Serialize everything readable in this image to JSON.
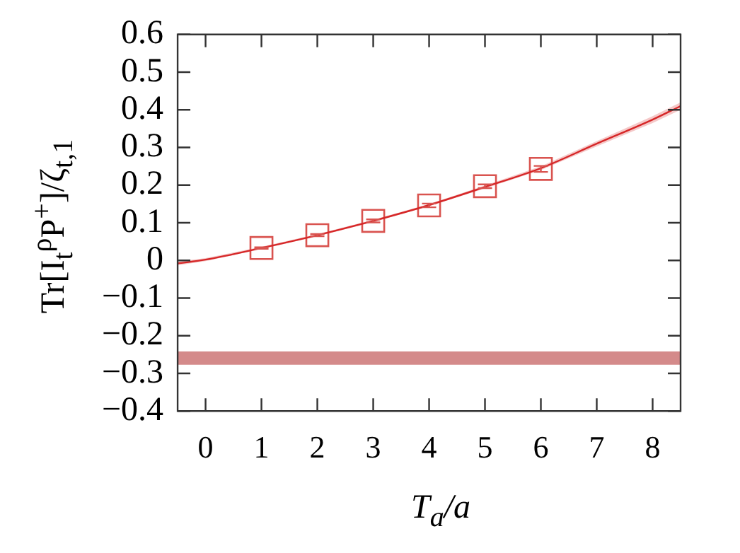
{
  "chart_data": {
    "type": "scatter",
    "xlabel": "T$_{a}$/a",
    "ylabel": "Tr[I$_{t}$$^{ρ}$P$^{+}$]/ζ$_{t,1}$",
    "xlim": [
      -0.5,
      8.5
    ],
    "xticks": [
      0,
      1,
      2,
      3,
      4,
      5,
      6,
      7,
      8
    ],
    "ylim": [
      -0.4,
      0.6
    ],
    "yticks": [
      -0.4,
      -0.3,
      -0.2,
      -0.1,
      0,
      0.1,
      0.2,
      0.3,
      0.4,
      0.5,
      0.6
    ],
    "series": [
      {
        "type": "line",
        "color": "#d62728",
        "x": [
          -0.5,
          0,
          1,
          2,
          3,
          4,
          5,
          6,
          7,
          8,
          8.5
        ],
        "values": [
          -0.008,
          0.002,
          0.033,
          0.067,
          0.105,
          0.147,
          0.195,
          0.245,
          0.31,
          0.374,
          0.41
        ],
        "lower": [
          -0.013,
          -0.002,
          0.03,
          0.064,
          0.102,
          0.144,
          0.191,
          0.24,
          0.303,
          0.365,
          0.4
        ],
        "upper": [
          -0.003,
          0.006,
          0.036,
          0.07,
          0.108,
          0.15,
          0.199,
          0.25,
          0.317,
          0.383,
          0.42
        ]
      },
      {
        "marker": "square",
        "color": "#d9534f",
        "x": [
          1,
          2,
          3,
          4,
          5,
          6
        ],
        "values": [
          0.033,
          0.067,
          0.105,
          0.146,
          0.197,
          0.243
        ],
        "errors": [
          0.002,
          0.003,
          0.004,
          0.005,
          0.005,
          0.008
        ]
      }
    ],
    "bands": [
      {
        "axis": "y",
        "from": -0.277,
        "to": -0.242,
        "color": "#d48a8a"
      }
    ]
  }
}
